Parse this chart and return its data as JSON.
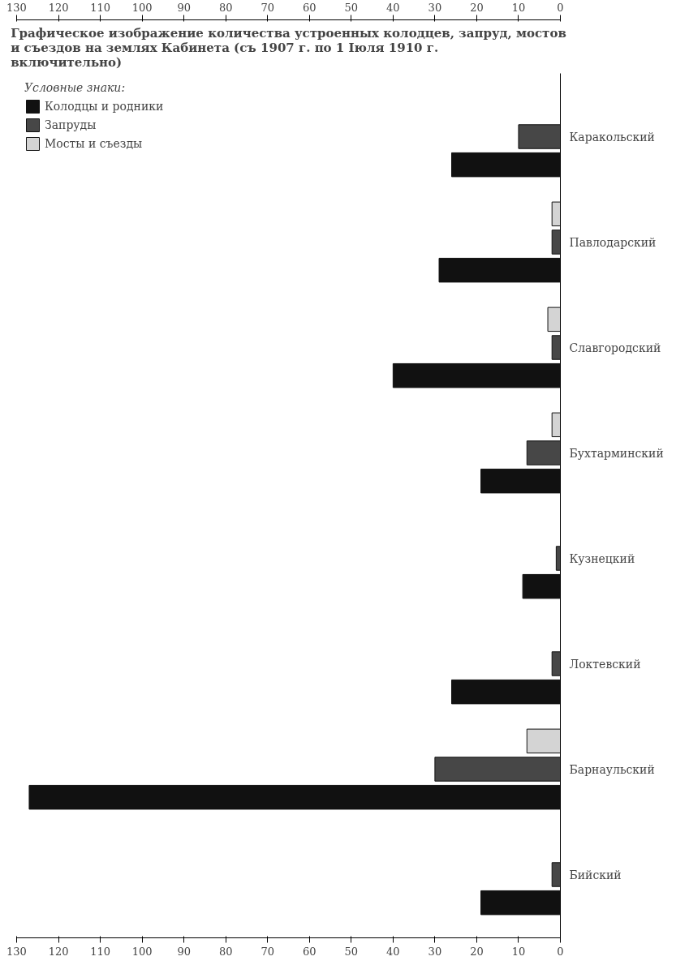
{
  "chart_data": {
    "type": "bar",
    "orientation": "horizontal",
    "title": "Графическое изображение количества устроенных колодцев, запруд, мостов и съездов на землях Кабинета (съ 1907 г. по 1 Іюля 1910 г. включительно)",
    "legend_title": "Условные знаки:",
    "categories": [
      "Каракольский",
      "Павлодарский",
      "Славгородский",
      "Бухтарминский",
      "Кузнецкий",
      "Локтевский",
      "Барнаульский",
      "Бийский"
    ],
    "series": [
      {
        "name": "Колодцы и родники",
        "color": "#111111",
        "values": [
          26,
          29,
          40,
          19,
          9,
          26,
          127,
          19
        ]
      },
      {
        "name": "Запруды",
        "color": "#474747",
        "values": [
          10,
          2,
          2,
          8,
          1,
          2,
          30,
          2
        ]
      },
      {
        "name": "Мосты и съезды",
        "color": "#d4d4d4",
        "values": [
          null,
          2,
          3,
          2,
          null,
          null,
          8,
          null
        ]
      }
    ],
    "xlim": [
      130,
      0
    ],
    "xticks": [
      0,
      10,
      20,
      30,
      40,
      50,
      60,
      70,
      80,
      90,
      100,
      110,
      120,
      130
    ],
    "x2lim": [
      130,
      0
    ],
    "x2ticks": [
      0,
      10,
      20,
      30,
      40,
      50,
      60,
      70,
      80,
      90,
      100,
      110,
      120,
      130
    ],
    "grid": false,
    "legend": "top left"
  }
}
